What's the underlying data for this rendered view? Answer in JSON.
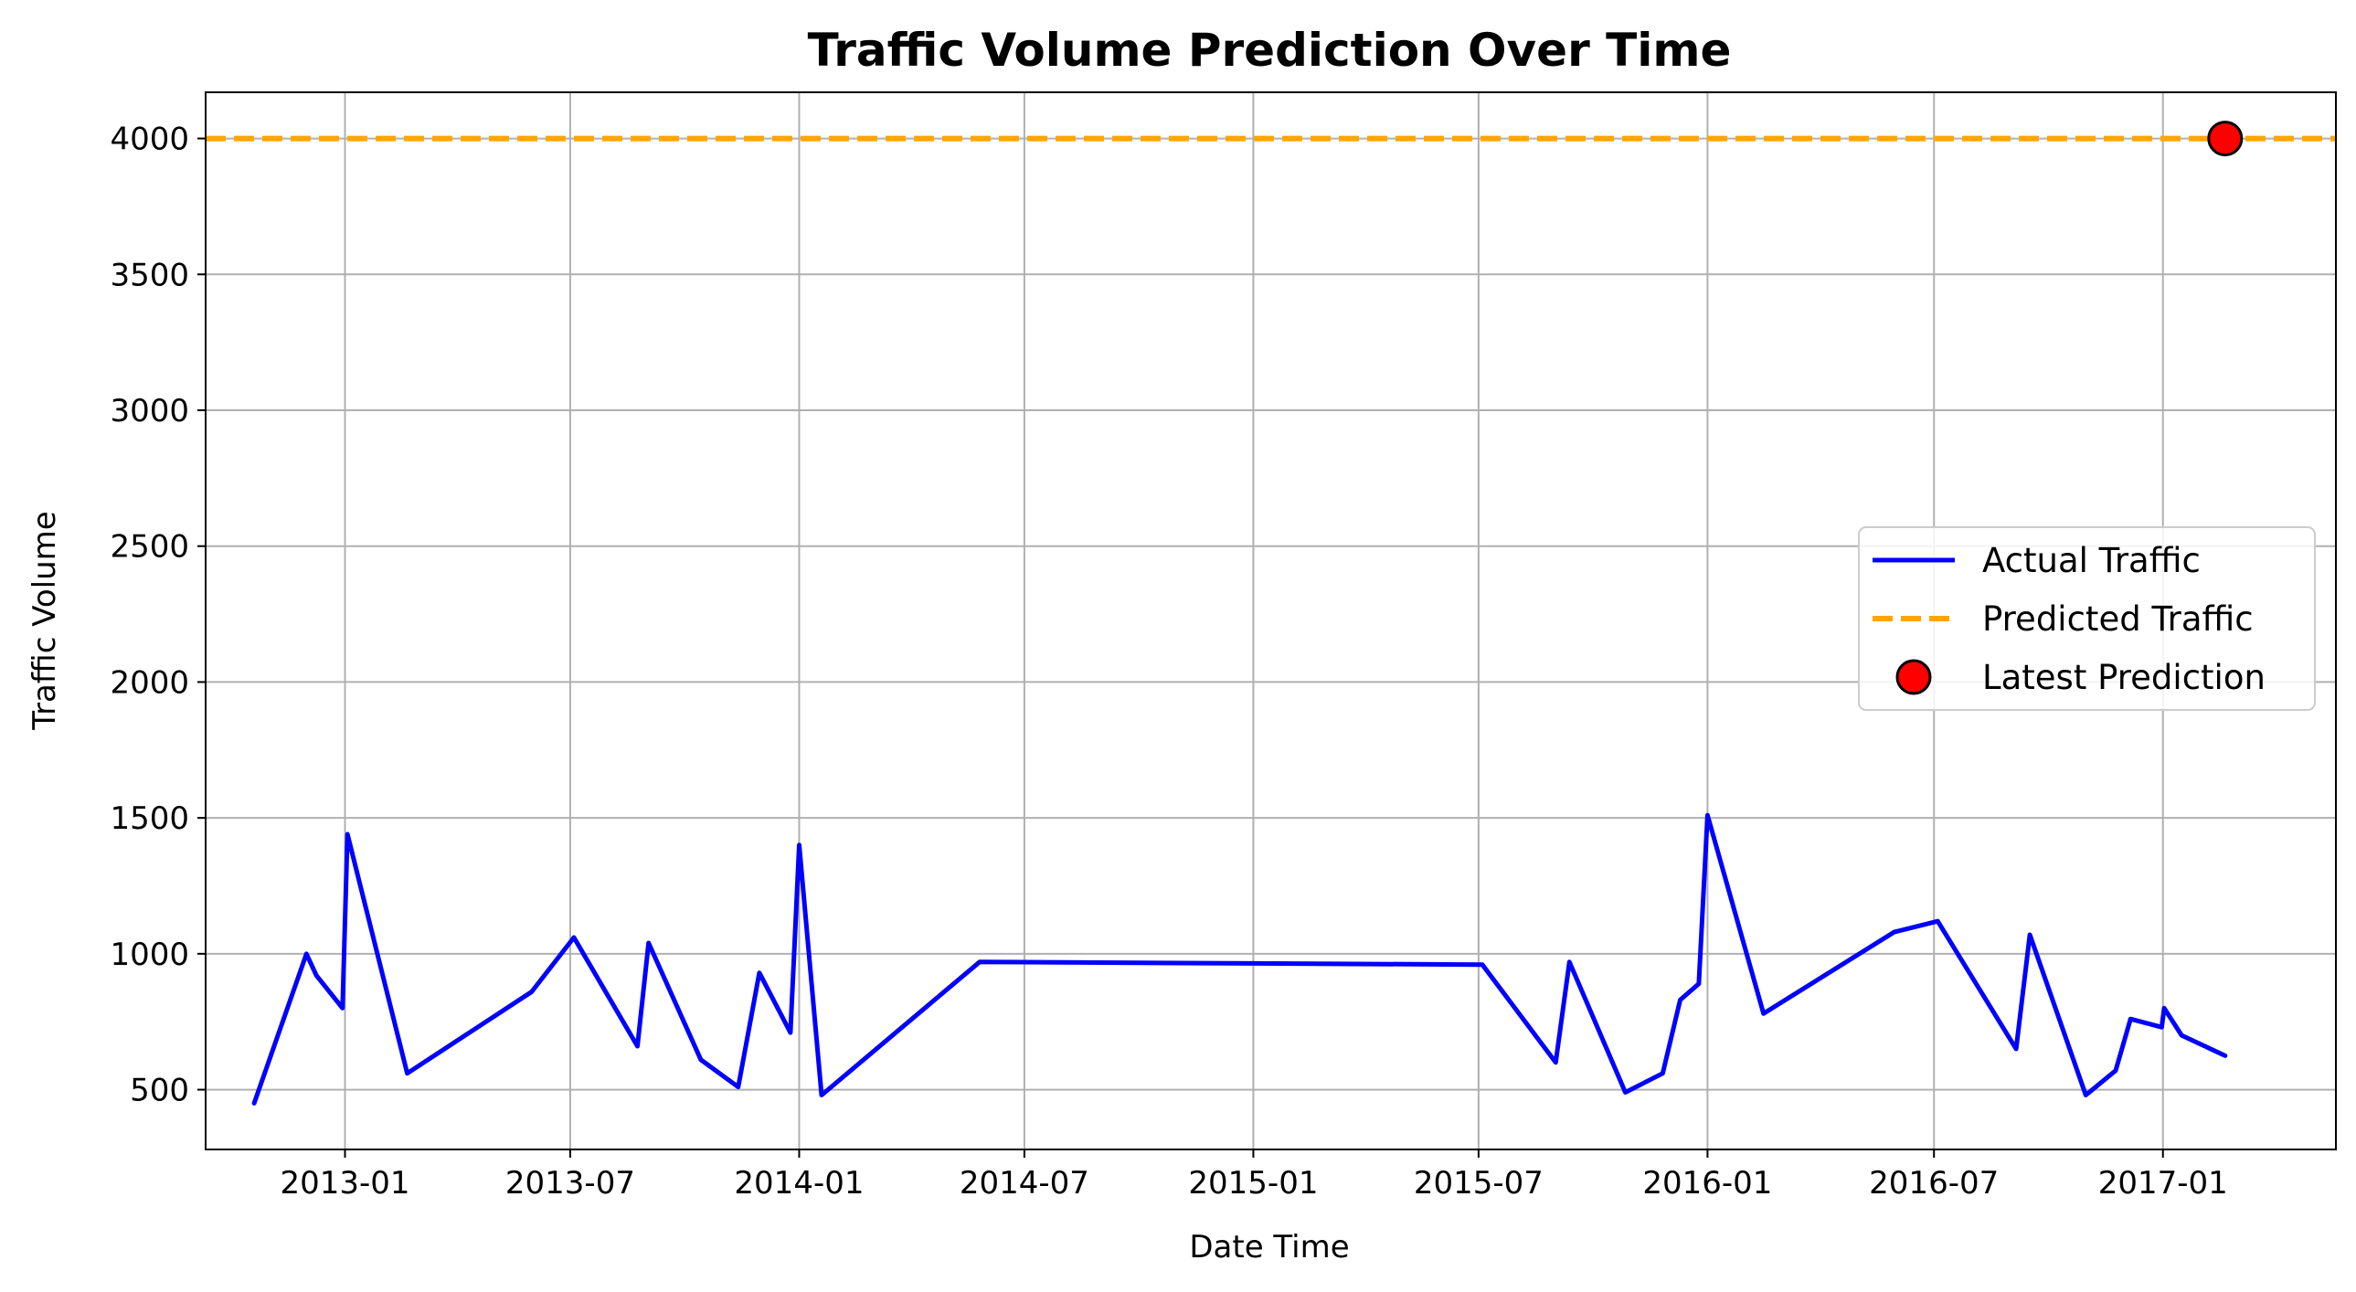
{
  "chart_data": {
    "type": "line",
    "title": "Traffic Volume Prediction Over Time",
    "xlabel": "Date Time",
    "ylabel": "Traffic Volume",
    "xlim": [
      "2012-09-11",
      "2017-05-20"
    ],
    "ylim": [
      280,
      4170
    ],
    "x_ticks": [
      "2013-01",
      "2013-07",
      "2014-01",
      "2014-07",
      "2015-01",
      "2015-07",
      "2016-01",
      "2016-07",
      "2017-01"
    ],
    "y_ticks": [
      500,
      1000,
      1500,
      2000,
      2500,
      3000,
      3500,
      4000
    ],
    "grid": true,
    "legend_position": "center-right",
    "series": [
      {
        "name": "Actual Traffic",
        "style": "solid",
        "color": "#0000ff",
        "points": [
          {
            "x": "2012-10-20",
            "y": 450
          },
          {
            "x": "2012-12-01",
            "y": 1000
          },
          {
            "x": "2012-12-09",
            "y": 920
          },
          {
            "x": "2012-12-30",
            "y": 800
          },
          {
            "x": "2013-01-03",
            "y": 1440
          },
          {
            "x": "2013-02-20",
            "y": 560
          },
          {
            "x": "2013-05-31",
            "y": 860
          },
          {
            "x": "2013-07-04",
            "y": 1060
          },
          {
            "x": "2013-08-24",
            "y": 660
          },
          {
            "x": "2013-09-02",
            "y": 1040
          },
          {
            "x": "2013-10-14",
            "y": 610
          },
          {
            "x": "2013-11-13",
            "y": 510
          },
          {
            "x": "2013-11-30",
            "y": 930
          },
          {
            "x": "2013-12-25",
            "y": 710
          },
          {
            "x": "2014-01-01",
            "y": 1400
          },
          {
            "x": "2014-01-19",
            "y": 480
          },
          {
            "x": "2014-05-26",
            "y": 970
          },
          {
            "x": "2015-07-04",
            "y": 960
          },
          {
            "x": "2015-09-01",
            "y": 600
          },
          {
            "x": "2015-09-12",
            "y": 970
          },
          {
            "x": "2015-10-27",
            "y": 490
          },
          {
            "x": "2015-11-26",
            "y": 560
          },
          {
            "x": "2015-12-10",
            "y": 830
          },
          {
            "x": "2015-12-25",
            "y": 890
          },
          {
            "x": "2016-01-01",
            "y": 1510
          },
          {
            "x": "2016-02-15",
            "y": 780
          },
          {
            "x": "2016-05-30",
            "y": 1080
          },
          {
            "x": "2016-07-04",
            "y": 1120
          },
          {
            "x": "2016-09-05",
            "y": 650
          },
          {
            "x": "2016-09-16",
            "y": 1070
          },
          {
            "x": "2016-10-31",
            "y": 480
          },
          {
            "x": "2016-11-24",
            "y": 570
          },
          {
            "x": "2016-12-06",
            "y": 760
          },
          {
            "x": "2016-12-31",
            "y": 730
          },
          {
            "x": "2017-01-02",
            "y": 800
          },
          {
            "x": "2017-01-16",
            "y": 700
          },
          {
            "x": "2017-02-20",
            "y": 625
          }
        ]
      },
      {
        "name": "Predicted Traffic",
        "style": "dashed",
        "color": "#ffa500",
        "horizontal_value": 4000
      }
    ],
    "markers": [
      {
        "name": "Latest Prediction",
        "x": "2017-02-20",
        "y": 4000,
        "color": "#ff0000",
        "edge_color": "#000000"
      }
    ]
  }
}
